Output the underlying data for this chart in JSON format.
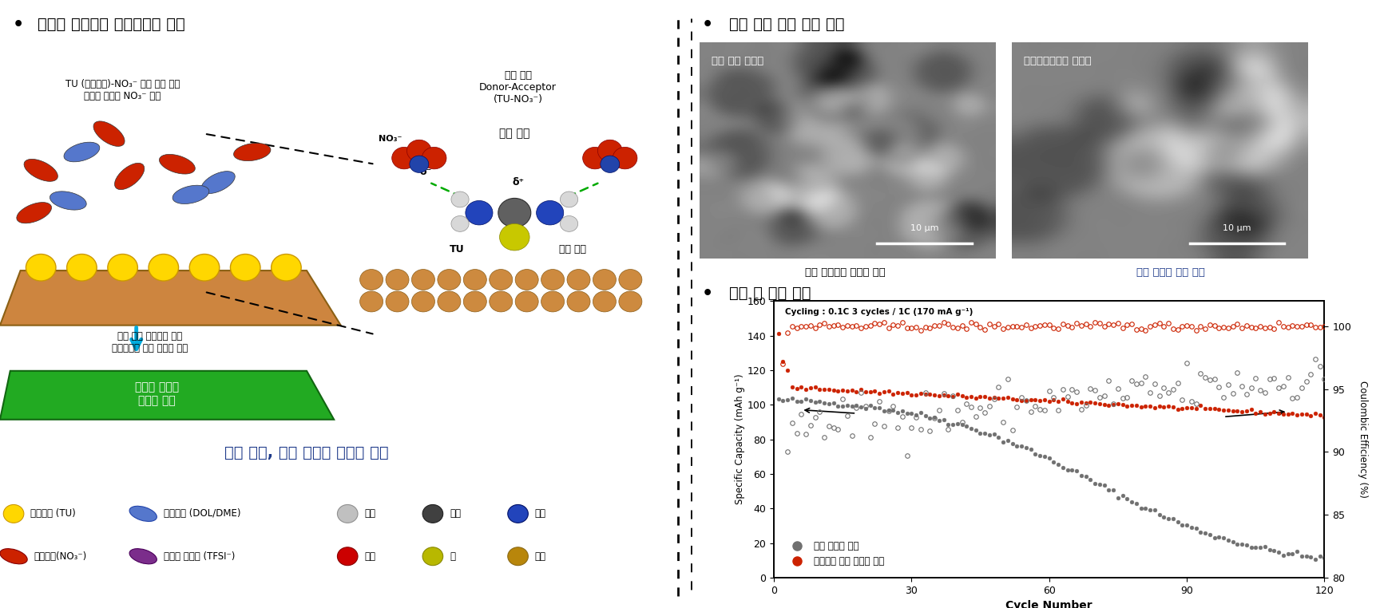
{
  "title_left": "집전체 전기화학 표면처리법 개발",
  "title_right_top": "리튬 금속 도금 형상 변화",
  "title_right_bottom": "완전 셀 성능 향상",
  "sem_label1": "기존 구리 집전체",
  "sem_label2": "전기표면처리후 집전체",
  "scale_bar": "10 μm",
  "caption_left1": "리튬 수지상의 과도한 형성",
  "caption_left2": "리튬 수지상 형성 억제",
  "left_banner": "높은 물성, 이온 전도도 고체막 형성",
  "graph_annotation": "Cycling : 0.1C 3 cycles / 1C (170 mA g⁻¹)",
  "legend_gray": "기존 집전체 사용",
  "legend_red": "전기화학 처리 집전체 사용",
  "xlabel": "Cycle Number",
  "ylabel_left": "Specific Capacity (mAh g⁻¹)",
  "ylabel_right": "Coulombic Efficiency (%)",
  "xlim": [
    0,
    120
  ],
  "ylim_left": [
    0,
    160
  ],
  "ylim_right": [
    80,
    102
  ],
  "xticks": [
    0,
    30,
    60,
    90,
    120
  ],
  "yticks_left": [
    0,
    20,
    40,
    60,
    80,
    100,
    120,
    140,
    160
  ],
  "yticks_right": [
    80,
    85,
    90,
    95,
    100
  ],
  "background_color": "#ffffff",
  "gray_color": "#707070",
  "red_color": "#CC2200",
  "blue_color": "#1E3A8A"
}
